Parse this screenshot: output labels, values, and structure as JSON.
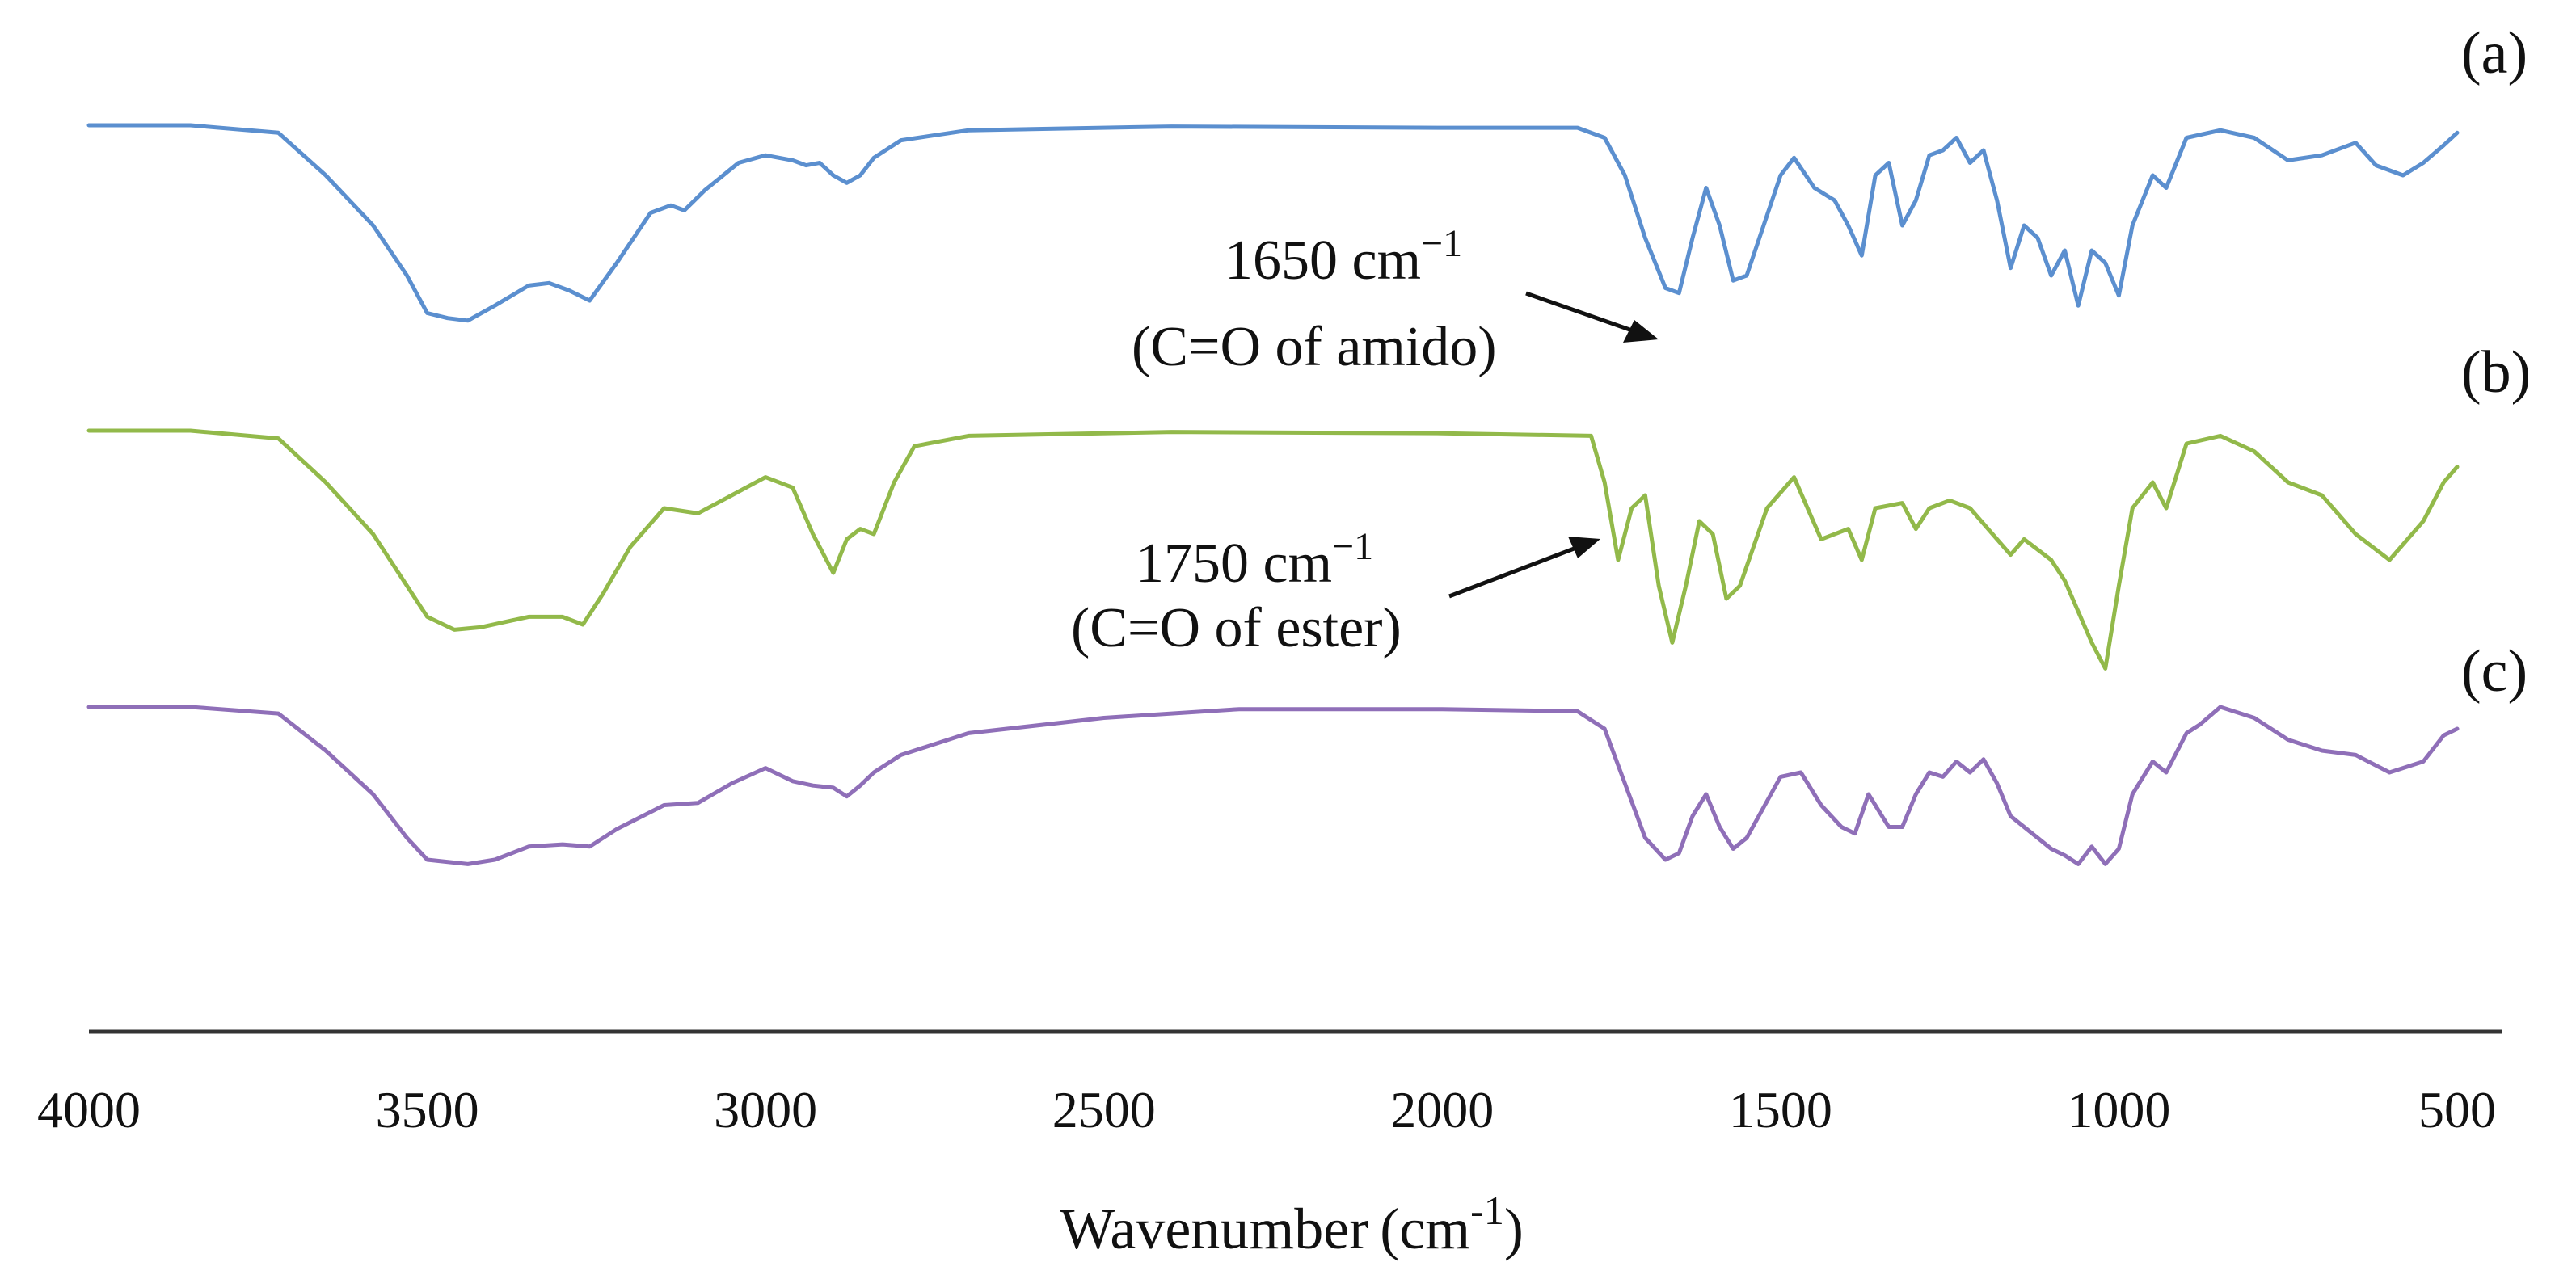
{
  "chart_data": {
    "type": "line",
    "title": "",
    "xlabel": "Wavenumber",
    "xlabel_unit": "(cm",
    "xlabel_unit_sup": "-1",
    "xlabel_unit_close": ")",
    "ylabel": "",
    "xlim": [
      4000,
      500
    ],
    "x_reversed": true,
    "x_ticks": [
      "4000",
      "3500",
      "3000",
      "2500",
      "2000",
      "1500",
      "1000",
      "500"
    ],
    "grid": false,
    "units_note": "y = relative transmittance, stacked offsets (a top, b middle, c bottom)",
    "series": [
      {
        "name": "(a)",
        "color": "#5b8fcf",
        "baseline": 0.0,
        "points": [
          [
            4000,
            0.0
          ],
          [
            3850,
            0.0
          ],
          [
            3720,
            -0.03
          ],
          [
            3650,
            -0.2
          ],
          [
            3580,
            -0.4
          ],
          [
            3530,
            -0.6
          ],
          [
            3500,
            -0.75
          ],
          [
            3470,
            -0.77
          ],
          [
            3440,
            -0.78
          ],
          [
            3400,
            -0.72
          ],
          [
            3350,
            -0.64
          ],
          [
            3320,
            -0.63
          ],
          [
            3290,
            -0.66
          ],
          [
            3260,
            -0.7
          ],
          [
            3220,
            -0.55
          ],
          [
            3170,
            -0.35
          ],
          [
            3140,
            -0.32
          ],
          [
            3120,
            -0.34
          ],
          [
            3090,
            -0.26
          ],
          [
            3040,
            -0.15
          ],
          [
            3000,
            -0.12
          ],
          [
            2960,
            -0.14
          ],
          [
            2940,
            -0.16
          ],
          [
            2920,
            -0.15
          ],
          [
            2900,
            -0.2
          ],
          [
            2880,
            -0.23
          ],
          [
            2860,
            -0.2
          ],
          [
            2840,
            -0.13
          ],
          [
            2800,
            -0.06
          ],
          [
            2700,
            -0.02
          ],
          [
            2400,
            -0.005
          ],
          [
            2000,
            -0.01
          ],
          [
            1800,
            -0.01
          ],
          [
            1760,
            -0.05
          ],
          [
            1730,
            -0.2
          ],
          [
            1700,
            -0.45
          ],
          [
            1670,
            -0.65
          ],
          [
            1650,
            -0.67
          ],
          [
            1630,
            -0.45
          ],
          [
            1610,
            -0.25
          ],
          [
            1590,
            -0.4
          ],
          [
            1570,
            -0.62
          ],
          [
            1550,
            -0.6
          ],
          [
            1500,
            -0.2
          ],
          [
            1480,
            -0.13
          ],
          [
            1450,
            -0.25
          ],
          [
            1420,
            -0.3
          ],
          [
            1400,
            -0.4
          ],
          [
            1380,
            -0.52
          ],
          [
            1360,
            -0.2
          ],
          [
            1340,
            -0.15
          ],
          [
            1320,
            -0.4
          ],
          [
            1300,
            -0.3
          ],
          [
            1280,
            -0.12
          ],
          [
            1260,
            -0.1
          ],
          [
            1240,
            -0.05
          ],
          [
            1220,
            -0.15
          ],
          [
            1200,
            -0.1
          ],
          [
            1180,
            -0.3
          ],
          [
            1160,
            -0.57
          ],
          [
            1140,
            -0.4
          ],
          [
            1120,
            -0.45
          ],
          [
            1100,
            -0.6
          ],
          [
            1080,
            -0.5
          ],
          [
            1060,
            -0.72
          ],
          [
            1040,
            -0.5
          ],
          [
            1020,
            -0.55
          ],
          [
            1000,
            -0.68
          ],
          [
            980,
            -0.4
          ],
          [
            950,
            -0.2
          ],
          [
            930,
            -0.25
          ],
          [
            900,
            -0.05
          ],
          [
            850,
            -0.02
          ],
          [
            800,
            -0.05
          ],
          [
            750,
            -0.14
          ],
          [
            700,
            -0.12
          ],
          [
            650,
            -0.07
          ],
          [
            620,
            -0.16
          ],
          [
            580,
            -0.2
          ],
          [
            550,
            -0.15
          ],
          [
            520,
            -0.08
          ],
          [
            500,
            -0.03
          ]
        ]
      },
      {
        "name": "(b)",
        "color": "#92b94a",
        "baseline": 0.0,
        "points": [
          [
            4000,
            0.0
          ],
          [
            3850,
            0.0
          ],
          [
            3720,
            -0.03
          ],
          [
            3650,
            -0.2
          ],
          [
            3580,
            -0.4
          ],
          [
            3530,
            -0.6
          ],
          [
            3500,
            -0.72
          ],
          [
            3460,
            -0.77
          ],
          [
            3420,
            -0.76
          ],
          [
            3350,
            -0.72
          ],
          [
            3300,
            -0.72
          ],
          [
            3270,
            -0.75
          ],
          [
            3240,
            -0.63
          ],
          [
            3200,
            -0.45
          ],
          [
            3150,
            -0.3
          ],
          [
            3100,
            -0.32
          ],
          [
            3050,
            -0.25
          ],
          [
            3000,
            -0.18
          ],
          [
            2960,
            -0.22
          ],
          [
            2930,
            -0.4
          ],
          [
            2900,
            -0.55
          ],
          [
            2880,
            -0.42
          ],
          [
            2860,
            -0.38
          ],
          [
            2840,
            -0.4
          ],
          [
            2810,
            -0.2
          ],
          [
            2780,
            -0.06
          ],
          [
            2700,
            -0.02
          ],
          [
            2400,
            -0.005
          ],
          [
            2000,
            -0.01
          ],
          [
            1780,
            -0.02
          ],
          [
            1760,
            -0.2
          ],
          [
            1740,
            -0.5
          ],
          [
            1720,
            -0.3
          ],
          [
            1700,
            -0.25
          ],
          [
            1680,
            -0.6
          ],
          [
            1660,
            -0.82
          ],
          [
            1640,
            -0.6
          ],
          [
            1620,
            -0.35
          ],
          [
            1600,
            -0.4
          ],
          [
            1580,
            -0.65
          ],
          [
            1560,
            -0.6
          ],
          [
            1520,
            -0.3
          ],
          [
            1480,
            -0.18
          ],
          [
            1460,
            -0.3
          ],
          [
            1440,
            -0.42
          ],
          [
            1400,
            -0.38
          ],
          [
            1380,
            -0.5
          ],
          [
            1360,
            -0.3
          ],
          [
            1320,
            -0.28
          ],
          [
            1300,
            -0.38
          ],
          [
            1280,
            -0.3
          ],
          [
            1250,
            -0.27
          ],
          [
            1220,
            -0.3
          ],
          [
            1180,
            -0.42
          ],
          [
            1160,
            -0.48
          ],
          [
            1140,
            -0.42
          ],
          [
            1100,
            -0.5
          ],
          [
            1080,
            -0.58
          ],
          [
            1060,
            -0.7
          ],
          [
            1040,
            -0.82
          ],
          [
            1020,
            -0.92
          ],
          [
            1000,
            -0.6
          ],
          [
            980,
            -0.3
          ],
          [
            950,
            -0.2
          ],
          [
            930,
            -0.3
          ],
          [
            900,
            -0.05
          ],
          [
            850,
            -0.02
          ],
          [
            800,
            -0.08
          ],
          [
            750,
            -0.2
          ],
          [
            700,
            -0.25
          ],
          [
            650,
            -0.4
          ],
          [
            600,
            -0.5
          ],
          [
            550,
            -0.35
          ],
          [
            520,
            -0.2
          ],
          [
            500,
            -0.14
          ]
        ]
      },
      {
        "name": "(c)",
        "color": "#8f6fb8",
        "baseline": 0.0,
        "points": [
          [
            4000,
            0.0
          ],
          [
            3850,
            0.0
          ],
          [
            3720,
            -0.03
          ],
          [
            3650,
            -0.2
          ],
          [
            3580,
            -0.4
          ],
          [
            3530,
            -0.6
          ],
          [
            3500,
            -0.7
          ],
          [
            3440,
            -0.72
          ],
          [
            3400,
            -0.7
          ],
          [
            3350,
            -0.64
          ],
          [
            3300,
            -0.63
          ],
          [
            3260,
            -0.64
          ],
          [
            3220,
            -0.56
          ],
          [
            3150,
            -0.45
          ],
          [
            3100,
            -0.44
          ],
          [
            3050,
            -0.35
          ],
          [
            3000,
            -0.28
          ],
          [
            2960,
            -0.34
          ],
          [
            2930,
            -0.36
          ],
          [
            2900,
            -0.37
          ],
          [
            2880,
            -0.41
          ],
          [
            2860,
            -0.36
          ],
          [
            2840,
            -0.3
          ],
          [
            2800,
            -0.22
          ],
          [
            2700,
            -0.12
          ],
          [
            2500,
            -0.05
          ],
          [
            2300,
            -0.01
          ],
          [
            2000,
            -0.01
          ],
          [
            1800,
            -0.02
          ],
          [
            1760,
            -0.1
          ],
          [
            1730,
            -0.35
          ],
          [
            1700,
            -0.6
          ],
          [
            1670,
            -0.7
          ],
          [
            1650,
            -0.67
          ],
          [
            1630,
            -0.5
          ],
          [
            1610,
            -0.4
          ],
          [
            1590,
            -0.55
          ],
          [
            1570,
            -0.65
          ],
          [
            1550,
            -0.6
          ],
          [
            1500,
            -0.32
          ],
          [
            1470,
            -0.3
          ],
          [
            1440,
            -0.45
          ],
          [
            1410,
            -0.55
          ],
          [
            1390,
            -0.58
          ],
          [
            1370,
            -0.4
          ],
          [
            1340,
            -0.55
          ],
          [
            1320,
            -0.55
          ],
          [
            1300,
            -0.4
          ],
          [
            1280,
            -0.3
          ],
          [
            1260,
            -0.32
          ],
          [
            1240,
            -0.25
          ],
          [
            1220,
            -0.3
          ],
          [
            1200,
            -0.24
          ],
          [
            1180,
            -0.35
          ],
          [
            1160,
            -0.5
          ],
          [
            1140,
            -0.55
          ],
          [
            1120,
            -0.6
          ],
          [
            1100,
            -0.65
          ],
          [
            1080,
            -0.68
          ],
          [
            1060,
            -0.72
          ],
          [
            1040,
            -0.64
          ],
          [
            1020,
            -0.72
          ],
          [
            1000,
            -0.65
          ],
          [
            980,
            -0.4
          ],
          [
            950,
            -0.25
          ],
          [
            930,
            -0.3
          ],
          [
            900,
            -0.12
          ],
          [
            880,
            -0.08
          ],
          [
            850,
            0.0
          ],
          [
            800,
            -0.05
          ],
          [
            750,
            -0.15
          ],
          [
            700,
            -0.2
          ],
          [
            650,
            -0.22
          ],
          [
            600,
            -0.3
          ],
          [
            550,
            -0.25
          ],
          [
            520,
            -0.13
          ],
          [
            500,
            -0.1
          ]
        ]
      }
    ],
    "annotations": [
      {
        "line1": "1650 cm",
        "line1_sup": "−1",
        "line2": "(C=O of amido)"
      },
      {
        "line1": "1750 cm",
        "line1_sup": "−1",
        "line2": "(C=O of ester)"
      }
    ]
  }
}
